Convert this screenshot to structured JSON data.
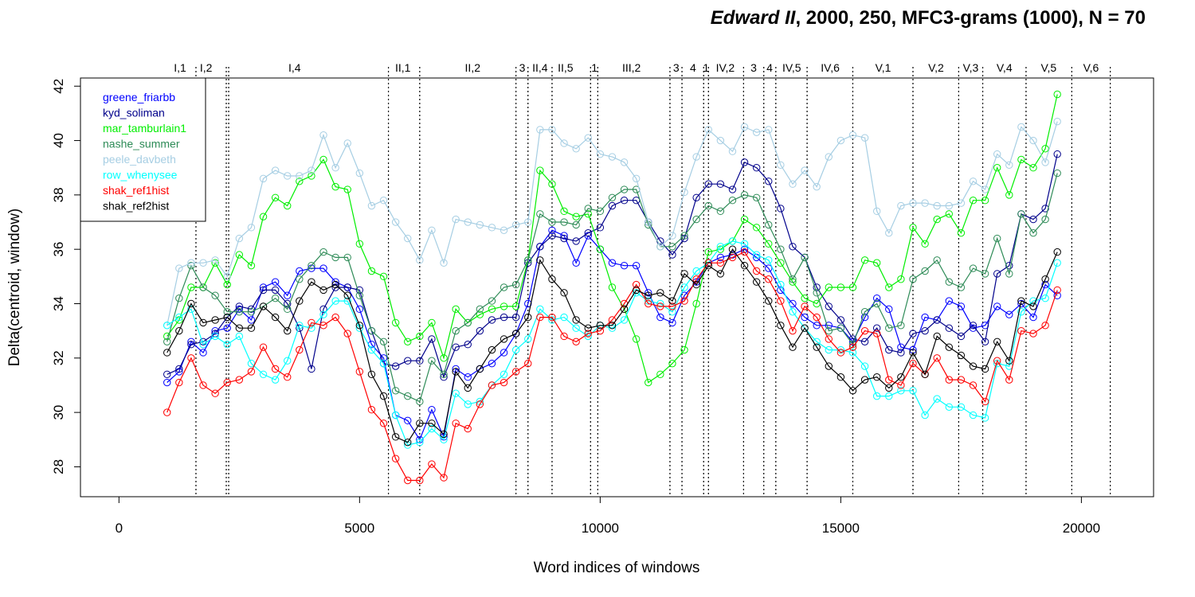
{
  "chart_data": {
    "type": "line",
    "title_italic": "Edward II",
    "title_rest": ", 2000, 250, MFC3-grams (1000), N = 70",
    "xlabel": "Word indices of windows",
    "ylabel": "Delta(centroid, window)",
    "xlim": [
      -800,
      21500
    ],
    "ylim": [
      26.9,
      42.3
    ],
    "xticks": [
      0,
      5000,
      10000,
      15000,
      20000
    ],
    "xtick_labels": [
      "0",
      "5000",
      "10000",
      "15000",
      "20000"
    ],
    "yticks": [
      28,
      30,
      32,
      34,
      36,
      38,
      40,
      42
    ],
    "ytick_labels": [
      "28",
      "30",
      "32",
      "34",
      "36",
      "38",
      "40",
      "42"
    ],
    "grid": false,
    "legend_position": "top-left",
    "scene_boundaries": [
      1600,
      2230,
      2280,
      5600,
      6250,
      8250,
      8500,
      9000,
      9800,
      9950,
      11450,
      11700,
      12150,
      12250,
      12980,
      13400,
      13650,
      14300,
      15250,
      16500,
      17450,
      17950,
      18850,
      19800,
      20600
    ],
    "scenes": [
      {
        "label": "I,1",
        "x": 1270
      },
      {
        "label": "I,2",
        "x": 1810
      },
      {
        "label": "I,4",
        "x": 3650
      },
      {
        "label": "II,1",
        "x": 5900
      },
      {
        "label": "II,2",
        "x": 7350
      },
      {
        "label": "3",
        "x": 8380
      },
      {
        "label": "II,4",
        "x": 8750
      },
      {
        "label": "II,5",
        "x": 9280
      },
      {
        "label": "1",
        "x": 9880
      },
      {
        "label": "III,2",
        "x": 10650
      },
      {
        "label": "3",
        "x": 11580
      },
      {
        "label": "4",
        "x": 11930
      },
      {
        "label": "1",
        "x": 12200
      },
      {
        "label": "IV,2",
        "x": 12600
      },
      {
        "label": "3",
        "x": 13190
      },
      {
        "label": "4",
        "x": 13520
      },
      {
        "label": "IV,5",
        "x": 13980
      },
      {
        "label": "IV,6",
        "x": 14780
      },
      {
        "label": "V,1",
        "x": 15880
      },
      {
        "label": "V,2",
        "x": 16980
      },
      {
        "label": "V,3",
        "x": 17700
      },
      {
        "label": "V,4",
        "x": 18400
      },
      {
        "label": "V,5",
        "x": 19320
      },
      {
        "label": "V,6",
        "x": 20200
      }
    ],
    "x": [
      1000,
      1250,
      1500,
      1750,
      2000,
      2250,
      2500,
      2750,
      3000,
      3250,
      3500,
      3750,
      4000,
      4250,
      4500,
      4750,
      5000,
      5250,
      5500,
      5750,
      6000,
      6250,
      6500,
      6750,
      7000,
      7250,
      7500,
      7750,
      8000,
      8250,
      8500,
      8750,
      9000,
      9250,
      9500,
      9750,
      10000,
      10250,
      10500,
      10750,
      11000,
      11250,
      11500,
      11750,
      12000,
      12250,
      12500,
      12750,
      13000,
      13250,
      13500,
      13750,
      14000,
      14250,
      14500,
      14750,
      15000,
      15250,
      15500,
      15750,
      16000,
      16250,
      16500,
      16750,
      17000,
      17250,
      17500,
      17750,
      18000,
      18250,
      18500,
      18750,
      19000,
      19250,
      19500
    ],
    "series": [
      {
        "name": "greene_friarbb",
        "color": "#0000ff",
        "values": [
          31.1,
          31.5,
          32.6,
          32.2,
          33.0,
          33.1,
          33.8,
          33.4,
          34.6,
          34.8,
          34.3,
          35.2,
          35.3,
          35.3,
          34.8,
          34.6,
          33.8,
          32.5,
          32.0,
          29.9,
          29.7,
          29.0,
          30.1,
          29.1,
          31.6,
          31.3,
          31.6,
          31.8,
          32.2,
          32.9,
          34.0,
          36.1,
          36.7,
          36.5,
          35.5,
          36.5,
          36.0,
          35.5,
          35.4,
          35.4,
          34.4,
          33.5,
          33.3,
          34.3,
          34.8,
          35.5,
          35.7,
          35.8,
          36.0,
          35.7,
          35.3,
          34.5,
          34.0,
          33.5,
          33.2,
          33.2,
          33.1,
          32.6,
          33.5,
          34.2,
          33.8,
          32.4,
          32.3,
          33.5,
          33.4,
          34.1,
          33.9,
          33.1,
          33.2,
          33.9,
          33.6,
          34.0,
          33.5,
          34.7,
          34.3
        ]
      },
      {
        "name": "kyd_soliman",
        "color": "#00008b",
        "values": [
          31.4,
          31.6,
          32.5,
          32.6,
          32.9,
          33.5,
          33.9,
          33.8,
          34.5,
          34.5,
          34.0,
          33.1,
          31.6,
          33.8,
          34.6,
          34.6,
          34.5,
          33.0,
          31.8,
          31.7,
          31.9,
          31.9,
          32.7,
          31.3,
          32.4,
          32.5,
          33.0,
          33.4,
          33.5,
          33.5,
          35.5,
          36.1,
          36.5,
          36.4,
          36.3,
          36.6,
          36.8,
          37.6,
          37.8,
          37.8,
          37.0,
          36.3,
          35.8,
          36.4,
          37.9,
          38.4,
          38.4,
          38.2,
          39.2,
          39.0,
          38.5,
          37.5,
          36.1,
          35.7,
          34.6,
          33.9,
          33.4,
          32.7,
          32.6,
          33.1,
          32.3,
          32.2,
          32.9,
          33.0,
          33.4,
          33.1,
          32.8,
          33.2,
          32.6,
          35.1,
          35.4,
          37.3,
          37.1,
          37.5,
          39.5
        ]
      },
      {
        "name": "mar_tamburlain1",
        "color": "#00ee00",
        "values": [
          32.8,
          33.4,
          34.6,
          34.6,
          35.5,
          34.7,
          35.8,
          35.4,
          37.2,
          37.9,
          37.6,
          38.5,
          38.7,
          39.3,
          38.3,
          38.2,
          36.2,
          35.2,
          35.0,
          33.3,
          32.6,
          32.8,
          33.3,
          32.0,
          33.8,
          33.3,
          33.6,
          33.8,
          33.9,
          33.9,
          35.6,
          38.9,
          38.4,
          37.4,
          37.2,
          37.3,
          36.0,
          34.6,
          33.8,
          32.7,
          31.1,
          31.4,
          31.8,
          32.3,
          34.0,
          35.9,
          36.0,
          36.3,
          37.1,
          36.8,
          36.2,
          35.5,
          34.8,
          34.2,
          34.0,
          34.6,
          34.6,
          34.6,
          35.6,
          35.5,
          34.6,
          34.9,
          36.8,
          36.2,
          37.1,
          37.3,
          36.6,
          37.8,
          37.8,
          39.0,
          38.0,
          39.3,
          39.0,
          39.7,
          41.7
        ]
      },
      {
        "name": "nashe_summer",
        "color": "#2e8b57",
        "values": [
          32.6,
          34.2,
          35.4,
          34.6,
          34.3,
          33.7,
          33.7,
          33.7,
          33.9,
          34.2,
          33.8,
          34.9,
          35.4,
          35.9,
          35.7,
          35.7,
          34.3,
          33.0,
          32.6,
          30.8,
          30.6,
          30.4,
          31.9,
          31.4,
          33.0,
          33.3,
          33.8,
          34.1,
          34.6,
          34.7,
          35.6,
          37.3,
          37.0,
          37.0,
          36.9,
          37.5,
          37.4,
          37.9,
          38.2,
          38.2,
          36.9,
          36.1,
          36.1,
          36.5,
          37.1,
          37.6,
          37.4,
          37.8,
          38.0,
          37.9,
          36.9,
          36.0,
          34.9,
          35.7,
          34.4,
          33.0,
          33.1,
          32.5,
          33.7,
          34.0,
          33.1,
          33.2,
          34.9,
          35.2,
          35.6,
          34.8,
          34.6,
          35.3,
          35.1,
          36.4,
          35.1,
          37.3,
          36.6,
          37.1,
          38.8
        ]
      },
      {
        "name": "peele_davbeth",
        "color": "#a6cee3",
        "values": [
          33.2,
          35.3,
          35.5,
          35.5,
          35.6,
          35.0,
          36.4,
          36.8,
          38.6,
          38.9,
          38.7,
          38.7,
          38.9,
          40.2,
          39.0,
          39.9,
          38.8,
          37.6,
          37.8,
          37.0,
          36.4,
          35.6,
          36.7,
          35.5,
          37.1,
          37.0,
          36.9,
          36.8,
          36.7,
          36.9,
          37.0,
          40.4,
          40.4,
          39.9,
          39.7,
          40.1,
          39.5,
          39.4,
          39.2,
          38.6,
          37.0,
          36.1,
          36.5,
          38.1,
          39.4,
          40.4,
          40.0,
          39.6,
          40.5,
          40.3,
          40.4,
          39.1,
          38.4,
          38.9,
          38.3,
          39.4,
          40.0,
          40.2,
          40.1,
          37.4,
          36.6,
          37.6,
          37.7,
          37.7,
          37.6,
          37.6,
          37.7,
          38.5,
          38.2,
          39.5,
          39.1,
          40.5,
          40.0,
          39.2,
          40.7
        ]
      },
      {
        "name": "row_whenysee",
        "color": "#00ffff",
        "values": [
          33.2,
          33.5,
          33.8,
          32.5,
          32.8,
          32.5,
          32.8,
          31.8,
          31.4,
          31.2,
          31.9,
          33.2,
          33.1,
          33.6,
          34.1,
          34.1,
          33.1,
          32.3,
          31.8,
          29.9,
          28.8,
          28.9,
          29.4,
          29.0,
          30.7,
          30.3,
          30.4,
          31.0,
          31.4,
          32.3,
          32.7,
          33.8,
          33.4,
          33.5,
          33.1,
          32.8,
          33.2,
          33.1,
          33.4,
          34.4,
          34.1,
          34.0,
          33.7,
          34.6,
          35.2,
          35.5,
          36.1,
          36.3,
          36.2,
          35.8,
          35.6,
          34.7,
          33.7,
          33.1,
          32.6,
          32.3,
          32.3,
          32.2,
          31.7,
          30.6,
          30.6,
          30.8,
          30.8,
          29.9,
          30.5,
          30.2,
          30.2,
          29.9,
          29.8,
          31.8,
          31.7,
          33.7,
          34.1,
          34.2,
          35.5
        ]
      },
      {
        "name": "shak_ref1hist",
        "color": "#ff0000",
        "values": [
          30.0,
          31.1,
          32.0,
          31.0,
          30.7,
          31.1,
          31.2,
          31.5,
          32.4,
          31.6,
          31.3,
          32.3,
          33.3,
          33.2,
          33.5,
          32.9,
          31.5,
          30.1,
          29.6,
          28.3,
          27.5,
          27.5,
          28.1,
          27.6,
          29.6,
          29.4,
          30.3,
          31.0,
          31.1,
          31.5,
          31.8,
          33.5,
          33.5,
          32.8,
          32.6,
          32.9,
          33.0,
          33.4,
          34.0,
          34.7,
          34.0,
          33.9,
          33.9,
          34.1,
          34.9,
          35.5,
          35.5,
          35.7,
          35.9,
          35.2,
          34.9,
          34.1,
          33.0,
          33.9,
          33.5,
          32.7,
          32.2,
          32.4,
          33.0,
          32.9,
          31.2,
          31.0,
          31.8,
          31.4,
          32.0,
          31.2,
          31.2,
          31.0,
          30.4,
          31.9,
          31.2,
          33.0,
          32.9,
          33.2,
          34.5
        ]
      },
      {
        "name": "shak_ref2hist",
        "color": "#000000",
        "values": [
          32.2,
          33.0,
          34.0,
          33.3,
          33.4,
          33.5,
          33.1,
          33.1,
          33.9,
          33.5,
          33.0,
          34.1,
          34.8,
          34.5,
          34.7,
          34.3,
          33.2,
          31.4,
          30.6,
          29.1,
          28.9,
          29.6,
          29.6,
          29.2,
          31.5,
          30.9,
          31.6,
          32.3,
          32.7,
          32.9,
          33.5,
          35.6,
          34.9,
          34.4,
          33.4,
          33.1,
          33.2,
          33.2,
          33.8,
          34.5,
          34.3,
          34.4,
          34.1,
          35.1,
          34.7,
          35.4,
          35.1,
          36.0,
          35.4,
          34.8,
          34.1,
          33.2,
          32.4,
          33.1,
          32.4,
          31.7,
          31.3,
          30.8,
          31.2,
          31.3,
          30.9,
          31.3,
          32.2,
          31.4,
          32.8,
          32.4,
          32.1,
          31.7,
          31.6,
          32.6,
          31.9,
          34.1,
          33.9,
          34.9,
          35.9
        ]
      }
    ]
  }
}
